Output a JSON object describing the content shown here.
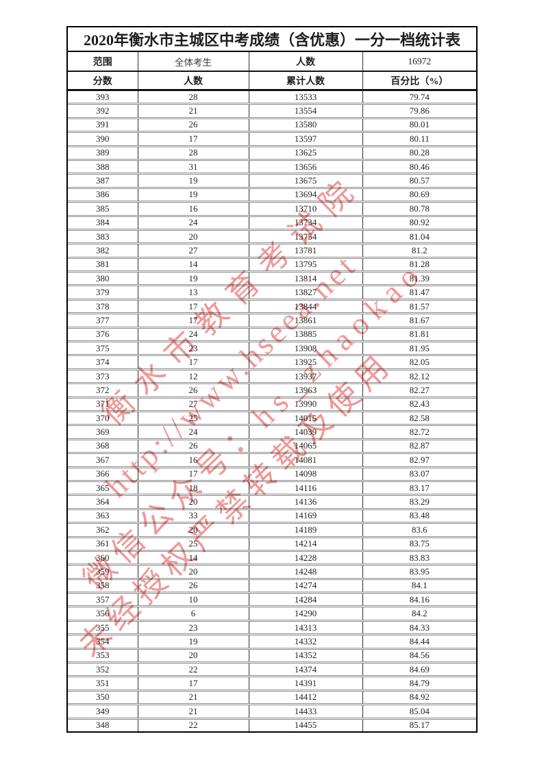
{
  "title": "2020年衡水市主城区中考成绩（含优惠）一分一档统计表",
  "summary": {
    "range_label": "范围",
    "range_value": "全体考生",
    "count_label": "人数",
    "count_value": "16972"
  },
  "columns": [
    "分数",
    "人数",
    "累计人数",
    "百分比（%）"
  ],
  "rows": [
    [
      393,
      28,
      13533,
      "79.74"
    ],
    [
      392,
      21,
      13554,
      "79.86"
    ],
    [
      391,
      26,
      13580,
      "80.01"
    ],
    [
      390,
      17,
      13597,
      "80.11"
    ],
    [
      389,
      28,
      13625,
      "80.28"
    ],
    [
      388,
      31,
      13656,
      "80.46"
    ],
    [
      387,
      19,
      13675,
      "80.57"
    ],
    [
      386,
      19,
      13694,
      "80.69"
    ],
    [
      385,
      16,
      13710,
      "80.78"
    ],
    [
      384,
      24,
      13734,
      "80.92"
    ],
    [
      383,
      20,
      13754,
      "81.04"
    ],
    [
      382,
      27,
      13781,
      "81.2"
    ],
    [
      381,
      14,
      13795,
      "81.28"
    ],
    [
      380,
      19,
      13814,
      "81.39"
    ],
    [
      379,
      13,
      13827,
      "81.47"
    ],
    [
      378,
      17,
      13844,
      "81.57"
    ],
    [
      377,
      17,
      13861,
      "81.67"
    ],
    [
      376,
      24,
      13885,
      "81.81"
    ],
    [
      375,
      23,
      13908,
      "81.95"
    ],
    [
      374,
      17,
      13925,
      "82.05"
    ],
    [
      373,
      12,
      13937,
      "82.12"
    ],
    [
      372,
      26,
      13963,
      "82.27"
    ],
    [
      371,
      27,
      13990,
      "82.43"
    ],
    [
      370,
      25,
      14015,
      "82.58"
    ],
    [
      369,
      24,
      14039,
      "82.72"
    ],
    [
      368,
      26,
      14065,
      "82.87"
    ],
    [
      367,
      16,
      14081,
      "82.97"
    ],
    [
      366,
      17,
      14098,
      "83.07"
    ],
    [
      365,
      18,
      14116,
      "83.17"
    ],
    [
      364,
      20,
      14136,
      "83.29"
    ],
    [
      363,
      33,
      14169,
      "83.48"
    ],
    [
      362,
      20,
      14189,
      "83.6"
    ],
    [
      361,
      25,
      14214,
      "83.75"
    ],
    [
      360,
      14,
      14228,
      "83.83"
    ],
    [
      359,
      20,
      14248,
      "83.95"
    ],
    [
      358,
      26,
      14274,
      "84.1"
    ],
    [
      357,
      10,
      14284,
      "84.16"
    ],
    [
      356,
      6,
      14290,
      "84.2"
    ],
    [
      355,
      23,
      14313,
      "84.33"
    ],
    [
      354,
      19,
      14332,
      "84.44"
    ],
    [
      353,
      20,
      14352,
      "84.56"
    ],
    [
      352,
      22,
      14374,
      "84.69"
    ],
    [
      351,
      17,
      14391,
      "84.79"
    ],
    [
      350,
      21,
      14412,
      "84.92"
    ],
    [
      349,
      21,
      14433,
      "85.04"
    ],
    [
      348,
      22,
      14455,
      "85.17"
    ]
  ],
  "watermark": {
    "color": "#ef8f8f",
    "lines": [
      "衡水市教育考试院",
      "http://www.hseea.net",
      "微信公众号：hs_zhaokao",
      "未经授权严禁转载及使用"
    ]
  }
}
